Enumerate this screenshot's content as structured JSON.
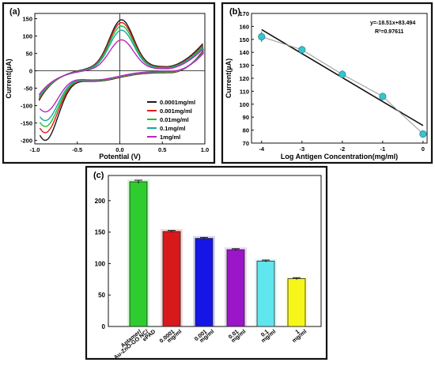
{
  "colors": {
    "black": "#1a1a1a",
    "red": "#e41a1c",
    "green": "#1fbf3a",
    "teal": "#15a99b",
    "magenta": "#b62ab8",
    "cyan": "#35c5cf",
    "bar_green": "#2ecc2e",
    "bar_red": "#d7191c",
    "bar_blue": "#1515e6",
    "bar_purple": "#9b16c9",
    "bar_cyan": "#5fe6ee",
    "bar_yellow": "#f6f61a"
  },
  "chart_data": [
    {
      "id": "a",
      "type": "line",
      "panel_label": "(a)",
      "xlabel": "Potential (V)",
      "ylabel": "Current(µA)",
      "xlim": [
        -1.0,
        1.0
      ],
      "ylim": [
        -210,
        165
      ],
      "xticks": [
        -1.0,
        -0.5,
        0.0,
        0.5,
        1.0
      ],
      "xtick_labels": [
        "-1.0",
        "-0.5",
        "0.0",
        "0.5",
        "1.0"
      ],
      "yticks": [
        -200,
        -150,
        -100,
        -50,
        0,
        50,
        100,
        150
      ],
      "ytick_labels": [
        "-200",
        "-150",
        "-100",
        "-50",
        "0",
        "50",
        "100",
        "150"
      ],
      "legend_position": "bottom-right",
      "series": [
        {
          "name": "0.0001mg/ml",
          "color_key": "black",
          "anodic_peak": 148,
          "cathodic_peak": -197,
          "end_upper": 85,
          "end_lower": 65,
          "start_upper": -110,
          "base_upper": 12,
          "base_lower": -5
        },
        {
          "name": "0.001mg/ml",
          "color_key": "red",
          "anodic_peak": 140,
          "cathodic_peak": -175,
          "end_upper": 80,
          "end_lower": 62,
          "start_upper": -105,
          "base_upper": 10,
          "base_lower": -4
        },
        {
          "name": "0.01mg/ml",
          "color_key": "green",
          "anodic_peak": 130,
          "cathodic_peak": -157,
          "end_upper": 76,
          "end_lower": 60,
          "start_upper": -100,
          "base_upper": 9,
          "base_lower": -3
        },
        {
          "name": "0.1mg/ml",
          "color_key": "teal",
          "anodic_peak": 118,
          "cathodic_peak": -140,
          "end_upper": 72,
          "end_lower": 58,
          "start_upper": -95,
          "base_upper": 8,
          "base_lower": -2
        },
        {
          "name": "1mg/ml",
          "color_key": "magenta",
          "anodic_peak": 90,
          "cathodic_peak": -115,
          "end_upper": 68,
          "end_lower": 55,
          "start_upper": -88,
          "base_upper": 6,
          "base_lower": -1
        }
      ]
    },
    {
      "id": "b",
      "type": "scatter",
      "panel_label": "(b)",
      "xlabel": "Log Antigen Concentration(mg/ml)",
      "ylabel": "Current(µA)",
      "xlim": [
        -4.25,
        0.1
      ],
      "ylim": [
        70,
        170
      ],
      "xticks": [
        -4,
        -3,
        -2,
        -1,
        0
      ],
      "xtick_labels": [
        "-4",
        "-3",
        "-2",
        "-1",
        "0"
      ],
      "yticks": [
        70,
        80,
        90,
        100,
        110,
        120,
        130,
        140,
        150,
        160,
        170
      ],
      "ytick_labels": [
        "70",
        "80",
        "90",
        "100",
        "110",
        "120",
        "130",
        "140",
        "150",
        "160",
        "170"
      ],
      "points": {
        "x": [
          -4,
          -3,
          -2,
          -1,
          0
        ],
        "y": [
          152,
          142,
          123,
          106,
          77
        ],
        "err": [
          4,
          3,
          3,
          2.5,
          1.5
        ]
      },
      "fit": {
        "slope": -18.51,
        "intercept": 83.494,
        "x_range": [
          -4,
          0
        ]
      },
      "annotations": [
        "y=-18.51x+83.494",
        "R²=0.97611"
      ]
    },
    {
      "id": "c",
      "type": "bar",
      "panel_label": "(c)",
      "ylim": [
        0,
        240
      ],
      "yticks": [
        0,
        50,
        100,
        150,
        200
      ],
      "ytick_labels": [
        "0",
        "50",
        "100",
        "150",
        "200"
      ],
      "categories": [
        [
          "Aptamer/",
          "Au-ZnO-GO NC/",
          "ePAD"
        ],
        [
          "0.0001",
          "mg/ml"
        ],
        [
          "0.001",
          "mg/ml"
        ],
        [
          "0.01",
          "mg/ml"
        ],
        [
          "0.1",
          "mg/ml"
        ],
        [
          "1",
          "mg/ml"
        ]
      ],
      "values": [
        230,
        151,
        140,
        122,
        104,
        76
      ],
      "errors": [
        2.5,
        1.5,
        1.5,
        1.5,
        1.5,
        1.5
      ],
      "bar_color_keys": [
        "bar_green",
        "bar_red",
        "bar_blue",
        "bar_purple",
        "bar_cyan",
        "bar_yellow"
      ]
    }
  ]
}
